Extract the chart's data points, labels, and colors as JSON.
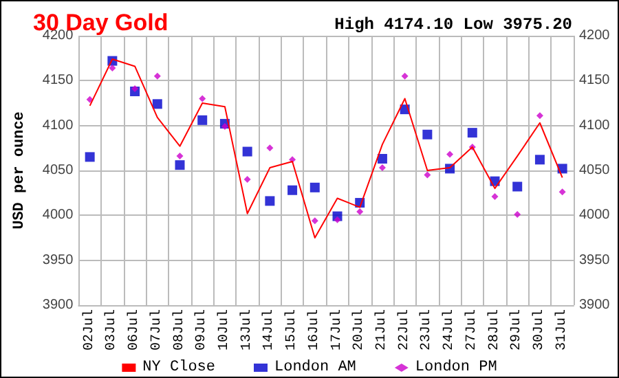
{
  "chart_data": {
    "type": "line",
    "title": "30 Day Gold",
    "ylabel": "USD per ounce",
    "annotations": [
      "High 4174.10 Low 3975.20"
    ],
    "categories": [
      "02Jul",
      "03Jul",
      "06Jul",
      "07Jul",
      "08Jul",
      "09Jul",
      "10Jul",
      "13Jul",
      "14Jul",
      "15Jul",
      "16Jul",
      "17Jul",
      "20Jul",
      "21Jul",
      "22Jul",
      "23Jul",
      "24Jul",
      "27Jul",
      "28Jul",
      "29Jul",
      "30Jul",
      "31Jul"
    ],
    "series": [
      {
        "name": "NY Close",
        "marker": "none",
        "color": "#ff0000",
        "values": [
          4122,
          4174,
          4166,
          4109,
          4077,
          4125,
          4121,
          4002,
          4053,
          4060,
          3975,
          4019,
          4009,
          4079,
          4130,
          4050,
          4053,
          4076,
          4030,
          4066,
          4103,
          4042
        ]
      },
      {
        "name": "London AM",
        "type": "scatter",
        "marker": "square",
        "color": "#0000cc",
        "values": [
          4065,
          4172,
          4138,
          4124,
          4056,
          4106,
          4102,
          4071,
          4016,
          4028,
          4031,
          3999,
          4014,
          4063,
          4118,
          4090,
          4052,
          4092,
          4038,
          4032,
          4062,
          4052
        ]
      },
      {
        "name": "London PM",
        "type": "scatter",
        "marker": "diamond",
        "color": "#cc00cc",
        "values": [
          4129,
          4164,
          4141,
          4155,
          4066,
          4130,
          4099,
          4040,
          4075,
          4062,
          3994,
          3995,
          4004,
          4053,
          4155,
          4045,
          4068,
          4076,
          4021,
          4001,
          4111,
          4026
        ]
      }
    ],
    "ylim": [
      3900,
      4200
    ],
    "yticks": [
      3900,
      3950,
      4000,
      4050,
      4100,
      4150,
      4200
    ],
    "y2lim": [
      3900,
      4200
    ],
    "y2ticks": [
      3900,
      3950,
      4000,
      4050,
      4100,
      4150,
      4200
    ],
    "grid": true,
    "legend": "bottom"
  }
}
